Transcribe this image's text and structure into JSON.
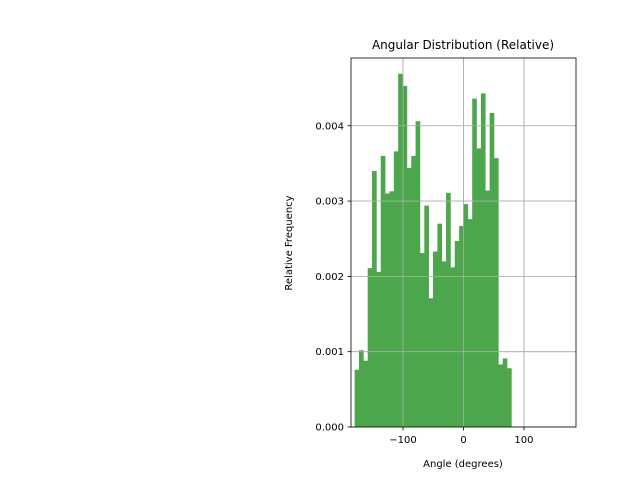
{
  "chart_data": {
    "type": "bar",
    "title": "Angular Distribution (Relative)",
    "xlabel": "Angle (degrees)",
    "ylabel": "Relative Frequency",
    "xlim": [
      -186,
      186
    ],
    "ylim": [
      0,
      0.0049
    ],
    "xticks": [
      -100,
      0,
      100
    ],
    "xtick_labels": [
      "−100",
      "0",
      "100"
    ],
    "yticks": [
      0.0,
      0.001,
      0.002,
      0.003,
      0.004
    ],
    "ytick_labels": [
      "0.000",
      "0.001",
      "0.002",
      "0.003",
      "0.004"
    ],
    "grid": true,
    "bin_start": -180,
    "bin_width": 7.2,
    "values": [
      0.00076,
      0.00102,
      0.00088,
      0.00211,
      0.0034,
      0.00206,
      0.0036,
      0.0031,
      0.00313,
      0.00366,
      0.00469,
      0.00453,
      0.00344,
      0.0036,
      0.00406,
      0.00231,
      0.00294,
      0.00171,
      0.00233,
      0.0027,
      0.0022,
      0.00311,
      0.00212,
      0.00247,
      0.00267,
      0.00296,
      0.00276,
      0.00436,
      0.0037,
      0.00443,
      0.00314,
      0.00417,
      0.00357,
      0.00083,
      0.00091,
      0.00078
    ],
    "bar_color": "#4ca64c"
  }
}
